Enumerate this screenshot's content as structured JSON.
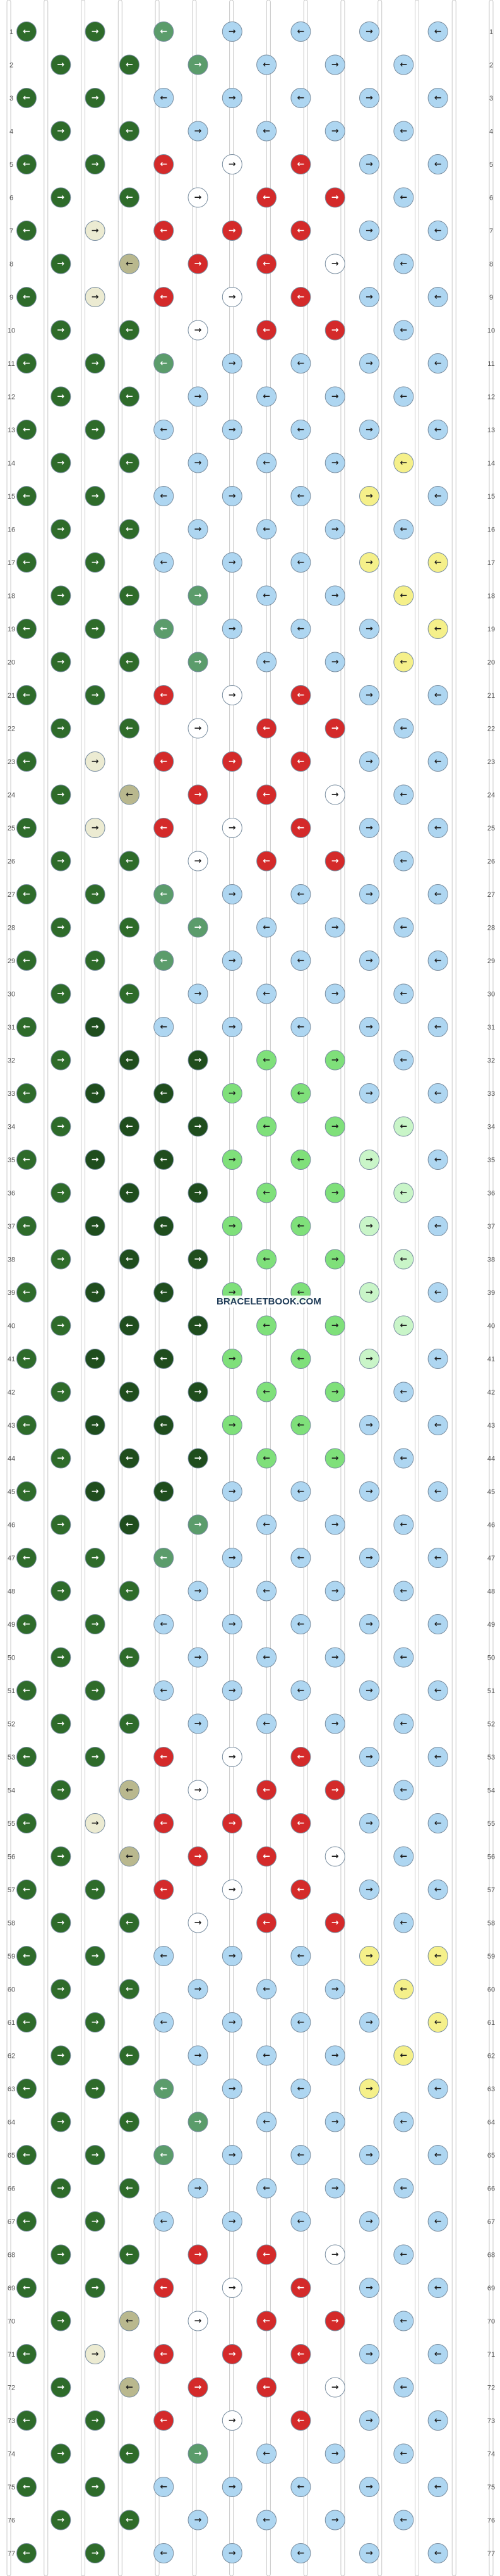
{
  "pattern": {
    "rows": 77,
    "strings": 14,
    "watermark": "BRACELETBOOK.COM",
    "colors": {
      "sky": "#aed6f1",
      "dark_green": "#2e6b2a",
      "forest": "#1f4d1d",
      "sage": "#5b9c6b",
      "light_green": "#7fe07a",
      "mint": "#c9f5c8",
      "red": "#d42a2a",
      "white": "#ffffff",
      "cream": "#ecebd2",
      "khaki": "#b9b88e",
      "yellow": "#f5f08a",
      "black": "#1b1b1b",
      "border": "#7a8ea0"
    },
    "row_labels": [
      "1",
      "2",
      "3",
      "4",
      "5",
      "6",
      "7",
      "8",
      "9",
      "10",
      "11",
      "12",
      "13",
      "14",
      "15",
      "16",
      "17",
      "18",
      "19",
      "20",
      "21",
      "22",
      "23",
      "24",
      "25",
      "26",
      "27",
      "28",
      "29",
      "30",
      "31",
      "32",
      "33",
      "34",
      "35",
      "36",
      "37",
      "38",
      "39",
      "40",
      "41",
      "42",
      "43",
      "44",
      "45",
      "46",
      "47",
      "48",
      "49",
      "50",
      "51",
      "52",
      "53",
      "54",
      "55",
      "56",
      "57",
      "58",
      "59",
      "60",
      "61",
      "62",
      "63",
      "64",
      "65",
      "66",
      "67",
      "68",
      "69",
      "70",
      "71",
      "72",
      "73",
      "74",
      "75",
      "76",
      "77"
    ],
    "knot_arrows": {
      "forward": "→",
      "backward": "←"
    },
    "strand_colors_at_top": [
      "dark_green",
      "dark_green",
      "sky",
      "sky",
      "sky",
      "sky",
      "sky",
      "sky",
      "sky",
      "sky",
      "sky",
      "sky",
      "sky",
      "sky"
    ]
  }
}
